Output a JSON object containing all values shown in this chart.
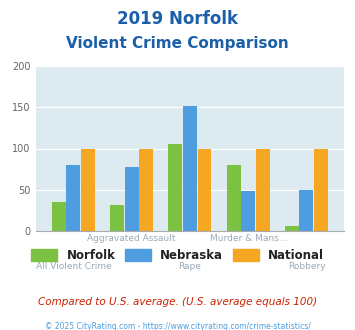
{
  "title_line1": "2019 Norfolk",
  "title_line2": "Violent Crime Comparison",
  "categories": [
    "All Violent Crime",
    "Aggravated Assault",
    "Rape",
    "Murder & Mans...",
    "Robbery"
  ],
  "norfolk": [
    35,
    31,
    105,
    80,
    6
  ],
  "nebraska": [
    80,
    78,
    152,
    48,
    50
  ],
  "national": [
    100,
    100,
    100,
    100,
    100
  ],
  "norfolk_color": "#7bc142",
  "nebraska_color": "#4d9de0",
  "national_color": "#f5a623",
  "ylim": [
    0,
    200
  ],
  "yticks": [
    0,
    50,
    100,
    150,
    200
  ],
  "bg_color": "#ddeaf0",
  "title_color": "#1a5fa8",
  "xlabel_color": "#9aaab8",
  "footer_note": "Compared to U.S. average. (U.S. average equals 100)",
  "footer_copy": "© 2025 CityRating.com - https://www.cityrating.com/crime-statistics/",
  "legend_labels": [
    "Norfolk",
    "Nebraska",
    "National"
  ],
  "top_labels": [
    "",
    "Aggravated Assault",
    "",
    "Murder & Mans...",
    ""
  ],
  "bottom_labels": [
    "All Violent Crime",
    "",
    "Rape",
    "",
    "Robbery"
  ]
}
